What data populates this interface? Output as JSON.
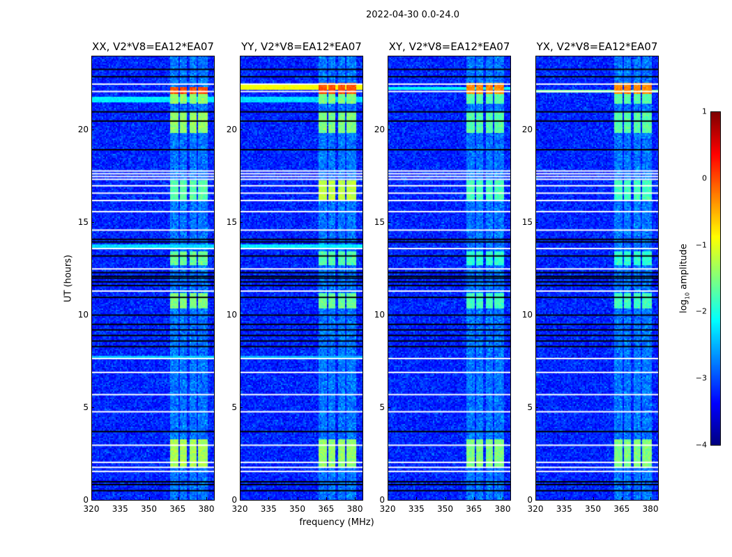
{
  "chart_data": {
    "type": "heatmap",
    "suptitle": "2022-04-30 0.0-24.0",
    "xlabel": "frequency (MHz)",
    "ylabel": "UT (hours)",
    "xlim": [
      320,
      384
    ],
    "ylim": [
      0,
      24
    ],
    "xticks": [
      "320",
      "335",
      "350",
      "365",
      "380"
    ],
    "xtick_values": [
      320,
      335,
      350,
      365,
      380
    ],
    "yticks": [
      "0",
      "5",
      "10",
      "15",
      "20"
    ],
    "ytick_values": [
      0,
      5,
      10,
      15,
      20
    ],
    "colorbar": {
      "label_main": "log",
      "label_sub": "10",
      "label_rest": " amplitude",
      "range": [
        -4,
        1
      ],
      "ticks": [
        "1",
        "0",
        "−1",
        "−2",
        "−3",
        "−4"
      ],
      "tick_values": [
        1,
        0,
        -1,
        -2,
        -3,
        -4
      ],
      "colormap": "jet"
    },
    "background_log_amplitude": -3.2,
    "rfi_subbands_mhz": [
      [
        360.5,
        365
      ],
      [
        365.5,
        369.5
      ],
      [
        370.5,
        374.5
      ],
      [
        375.5,
        380
      ]
    ],
    "flagged_white_ut": [
      22.5,
      22.1,
      17.8,
      17.65,
      17.5,
      17.35,
      17.0,
      16.6,
      16.2,
      15.6,
      14.6,
      13.6,
      12.5,
      11.3,
      7.65,
      6.9,
      5.7,
      4.77,
      2.96,
      2.03,
      1.76,
      1.54
    ],
    "zero_black_ut": [
      23.3,
      22.9,
      21.0,
      20.5,
      18.95,
      14.1,
      13.96,
      13.2,
      12.3,
      12.1,
      12.0,
      11.8,
      11.6,
      10.96,
      10.0,
      9.5,
      9.2,
      8.9,
      8.6,
      8.3,
      3.7,
      0.98,
      0.83,
      0.5
    ],
    "panels": [
      {
        "title": "XX, V2*V8=EA12*EA07",
        "rfi_events": [
          [
            1.8,
            3.3,
            -1.3
          ],
          [
            10.4,
            11.2,
            -1.5
          ],
          [
            12.7,
            13.5,
            -1.6
          ],
          [
            16.3,
            17.3,
            -1.7
          ],
          [
            19.9,
            21.0,
            -1.4
          ],
          [
            21.5,
            22.0,
            -1.4
          ],
          [
            22.0,
            22.35,
            0.0
          ]
        ],
        "broadband": [
          [
            21.55,
            21.85,
            -2.2
          ],
          [
            13.65,
            13.85,
            -2.3
          ],
          [
            7.7,
            7.85,
            -2.4
          ]
        ]
      },
      {
        "title": "YY, V2*V8=EA12*EA07",
        "rfi_events": [
          [
            1.8,
            3.3,
            -1.4
          ],
          [
            10.4,
            11.2,
            -1.6
          ],
          [
            12.7,
            13.5,
            -1.7
          ],
          [
            16.3,
            17.3,
            -1.2
          ],
          [
            19.9,
            21.0,
            -1.5
          ],
          [
            21.5,
            22.0,
            -1.5
          ],
          [
            22.0,
            22.6,
            0.0
          ]
        ],
        "broadband": [
          [
            22.25,
            22.5,
            -0.9
          ],
          [
            21.55,
            21.85,
            -2.3
          ],
          [
            13.65,
            13.85,
            -2.2
          ],
          [
            7.7,
            7.85,
            -2.5
          ]
        ]
      },
      {
        "title": "XY, V2*V8=EA12*EA07",
        "rfi_events": [
          [
            1.8,
            3.3,
            -1.5
          ],
          [
            10.4,
            11.2,
            -1.8
          ],
          [
            12.7,
            13.5,
            -1.9
          ],
          [
            16.3,
            17.3,
            -1.8
          ],
          [
            19.9,
            21.0,
            -1.7
          ],
          [
            21.5,
            22.0,
            -1.7
          ],
          [
            22.0,
            22.6,
            -0.3
          ]
        ],
        "broadband": [
          [
            22.2,
            22.35,
            -2.1
          ]
        ]
      },
      {
        "title": "YX, V2*V8=EA12*EA07",
        "rfi_events": [
          [
            1.8,
            3.3,
            -1.5
          ],
          [
            10.4,
            11.2,
            -1.8
          ],
          [
            12.7,
            13.5,
            -1.9
          ],
          [
            16.3,
            17.3,
            -1.8
          ],
          [
            19.9,
            21.0,
            -1.7
          ],
          [
            21.5,
            22.0,
            -1.7
          ],
          [
            22.0,
            22.6,
            -0.3
          ]
        ],
        "broadband": [
          [
            22.05,
            22.2,
            -1.6
          ]
        ]
      }
    ]
  }
}
